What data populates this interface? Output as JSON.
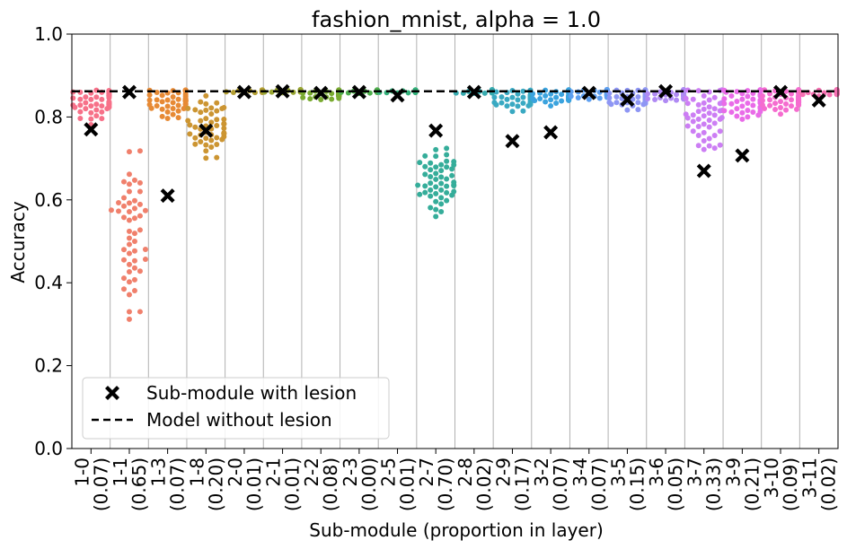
{
  "chart_data": {
    "type": "scatter",
    "title": "fashion_mnist, alpha = 1.0",
    "xlabel": "Sub-module (proportion in layer)",
    "ylabel": "Accuracy",
    "ylim": [
      0,
      1.0
    ],
    "yticks": [
      "0.0",
      "0.2",
      "0.4",
      "0.6",
      "0.8",
      "1.0"
    ],
    "grid": "vertical",
    "legend_position": "lower-left",
    "baseline": {
      "name": "Model without lesion",
      "value": 0.862,
      "style": "dashed",
      "color": "#000000"
    },
    "lesion_series_name": "Sub-module with lesion",
    "categories": [
      {
        "id": "1-0",
        "prop": "(0.07)",
        "lesion": 0.77,
        "center": 0.835,
        "spread": 0.025,
        "min": 0.78,
        "max": 0.865,
        "color": "#f77189"
      },
      {
        "id": "1-1",
        "prop": "(0.65)",
        "lesion": 0.86,
        "center": 0.52,
        "spread": 0.09,
        "min": 0.26,
        "max": 0.72,
        "color": "#f0806c"
      },
      {
        "id": "1-3",
        "prop": "(0.07)",
        "lesion": 0.61,
        "center": 0.835,
        "spread": 0.02,
        "min": 0.78,
        "max": 0.865,
        "color": "#e78a35"
      },
      {
        "id": "1-8",
        "prop": "(0.20)",
        "lesion": 0.767,
        "center": 0.78,
        "spread": 0.04,
        "min": 0.7,
        "max": 0.86,
        "color": "#cc9532"
      },
      {
        "id": "2-0",
        "prop": "(0.01)",
        "lesion": 0.86,
        "center": 0.863,
        "spread": 0.002,
        "min": 0.858,
        "max": 0.866,
        "color": "#b39e31"
      },
      {
        "id": "2-1",
        "prop": "(0.01)",
        "lesion": 0.862,
        "center": 0.863,
        "spread": 0.002,
        "min": 0.858,
        "max": 0.866,
        "color": "#98a531"
      },
      {
        "id": "2-2",
        "prop": "(0.08)",
        "lesion": 0.858,
        "center": 0.855,
        "spread": 0.006,
        "min": 0.84,
        "max": 0.866,
        "color": "#7aab31"
      },
      {
        "id": "2-3",
        "prop": "(0.00)",
        "lesion": 0.86,
        "center": 0.862,
        "spread": 0.002,
        "min": 0.856,
        "max": 0.866,
        "color": "#4faf4d"
      },
      {
        "id": "2-5",
        "prop": "(0.01)",
        "lesion": 0.852,
        "center": 0.862,
        "spread": 0.002,
        "min": 0.855,
        "max": 0.866,
        "color": "#33b07a"
      },
      {
        "id": "2-7",
        "prop": "(0.70)",
        "lesion": 0.767,
        "center": 0.65,
        "spread": 0.04,
        "min": 0.52,
        "max": 0.75,
        "color": "#35ad9a"
      },
      {
        "id": "2-8",
        "prop": "(0.02)",
        "lesion": 0.86,
        "center": 0.861,
        "spread": 0.003,
        "min": 0.852,
        "max": 0.866,
        "color": "#37abaf"
      },
      {
        "id": "2-9",
        "prop": "(0.17)",
        "lesion": 0.742,
        "center": 0.845,
        "spread": 0.015,
        "min": 0.77,
        "max": 0.866,
        "color": "#39a9c2"
      },
      {
        "id": "3-2",
        "prop": "(0.07)",
        "lesion": 0.763,
        "center": 0.85,
        "spread": 0.012,
        "min": 0.78,
        "max": 0.866,
        "color": "#3ba3de"
      },
      {
        "id": "3-4",
        "prop": "(0.07)",
        "lesion": 0.858,
        "center": 0.858,
        "spread": 0.008,
        "min": 0.8,
        "max": 0.866,
        "color": "#5d9ff0"
      },
      {
        "id": "3-5",
        "prop": "(0.15)",
        "lesion": 0.842,
        "center": 0.845,
        "spread": 0.015,
        "min": 0.78,
        "max": 0.866,
        "color": "#8e96f4"
      },
      {
        "id": "3-6",
        "prop": "(0.05)",
        "lesion": 0.862,
        "center": 0.858,
        "spread": 0.01,
        "min": 0.79,
        "max": 0.866,
        "color": "#b08af4"
      },
      {
        "id": "3-7",
        "prop": "(0.33)",
        "lesion": 0.67,
        "center": 0.8,
        "spread": 0.04,
        "min": 0.72,
        "max": 0.866,
        "color": "#cc7ef4"
      },
      {
        "id": "3-9",
        "prop": "(0.21)",
        "lesion": 0.707,
        "center": 0.84,
        "spread": 0.025,
        "min": 0.72,
        "max": 0.866,
        "color": "#e96be8"
      },
      {
        "id": "3-10",
        "prop": "(0.09)",
        "lesion": 0.86,
        "center": 0.845,
        "spread": 0.015,
        "min": 0.78,
        "max": 0.866,
        "color": "#f56ccf"
      },
      {
        "id": "3-11",
        "prop": "(0.02)",
        "lesion": 0.84,
        "center": 0.86,
        "spread": 0.004,
        "min": 0.8,
        "max": 0.866,
        "color": "#f670b2"
      }
    ]
  }
}
